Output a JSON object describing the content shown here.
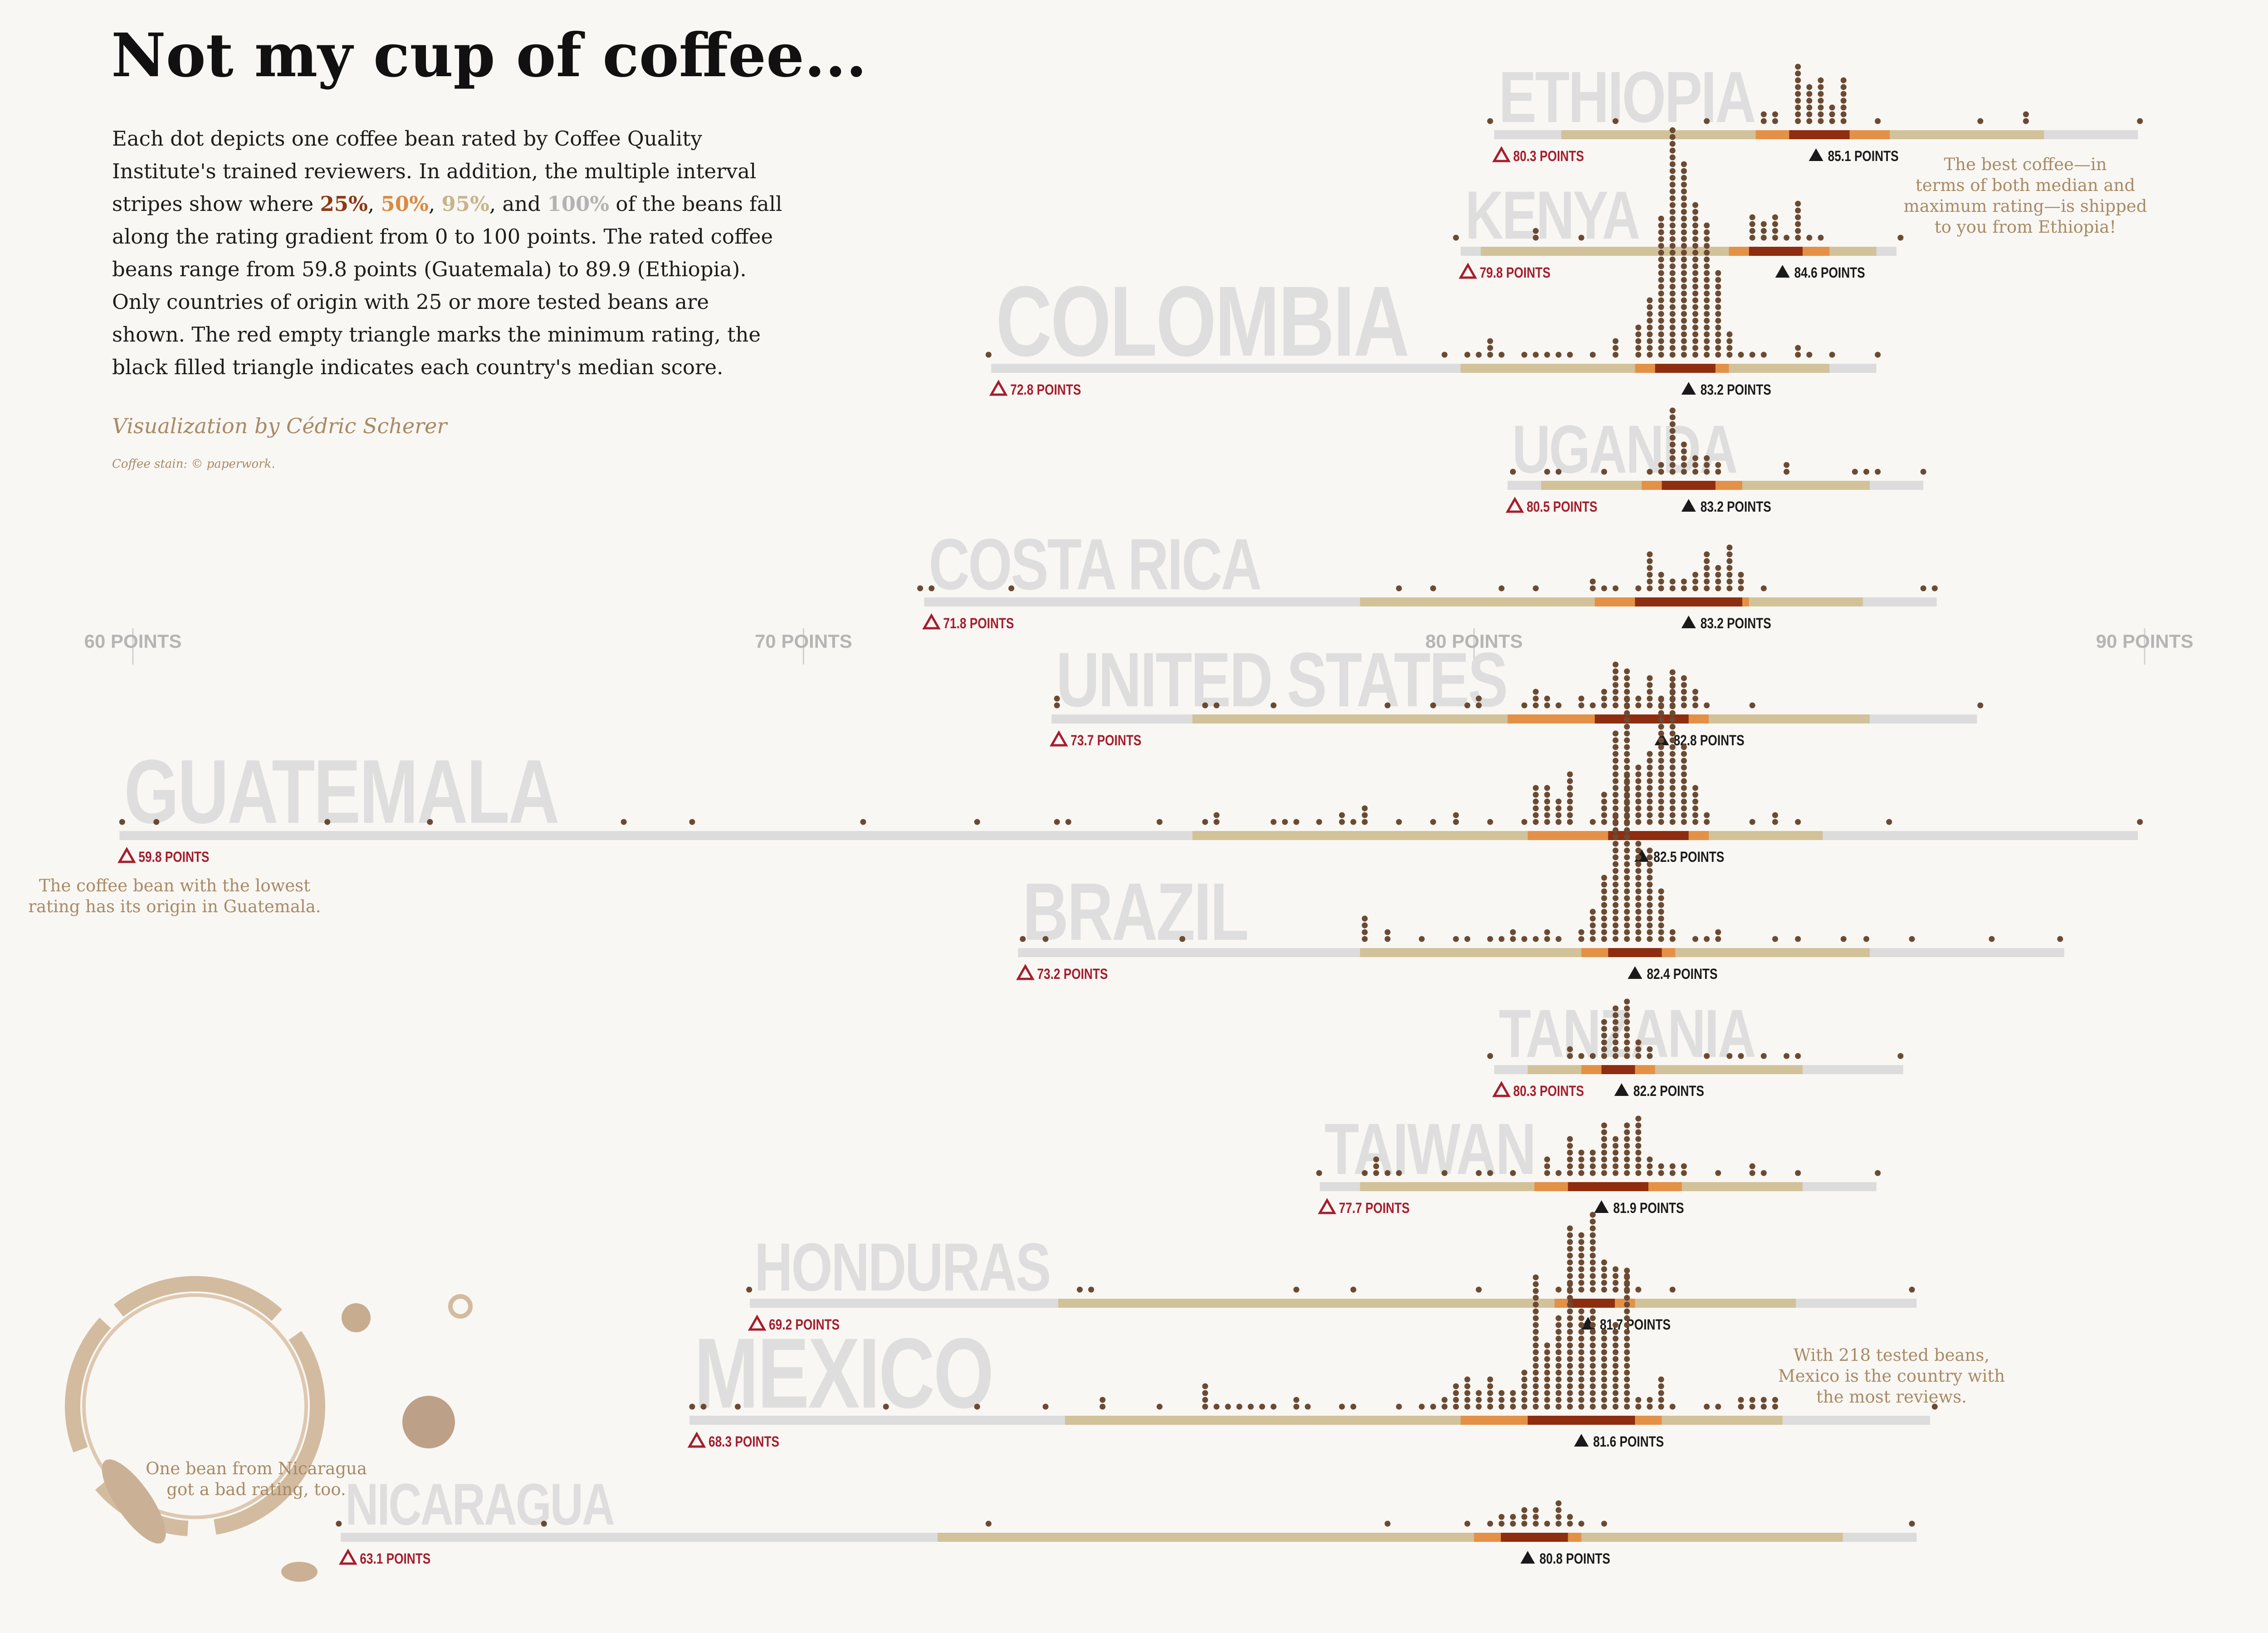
{
  "title": "Not my cup of coffee...",
  "intro": {
    "part1": "Each dot depicts one coffee bean rated by Coffee Quality Institute's trained reviewers. In addition, the multiple interval stripes show where ",
    "p25": "25%",
    "sep1": ", ",
    "p50": "50%",
    "sep2": ",  ",
    "p95": "95%",
    "sep3": ", and ",
    "p100": "100%",
    "part2": " of the beans fall along the rating gradient from 0 to 100 points. The rated coffee beans range from 59.8 points (Guatemala) to 89.9 (Ethiopia). Only countries of origin with 25 or more tested beans are shown. The red empty triangle marks the minimum rating, the black filled triangle indicates each country's median score."
  },
  "credit": "Visualization by Cédric Scherer",
  "stain_credit": "Coffee stain: © paperwork.",
  "colors": {
    "background": "#f9f7f3",
    "dot": "#6b4a33",
    "interval_100": "#dcdcdc",
    "interval_95": "#d2c29a",
    "interval_50": "#e49148",
    "interval_25": "#8f2d10",
    "min_marker": "#a51d2d",
    "median_marker": "#1a1a1a",
    "annotation": "#a88a66",
    "country_label": "#dedede"
  },
  "chart_data": {
    "type": "dot-interval",
    "x_axis": {
      "ylim_note": "rating",
      "xlim": [
        60,
        90
      ],
      "ticks": [
        60,
        70,
        80,
        90
      ],
      "tick_labels": [
        "60 POINTS",
        "70 POINTS",
        "80 POINTS",
        "90 POINTS"
      ]
    },
    "series": [
      {
        "country": "ETHIOPIA",
        "min": 80.3,
        "max": 89.9,
        "median": 85.1,
        "min_label": "80.3 POINTS",
        "median_label": "85.1 POINTS",
        "q25": [
          84.7,
          85.6
        ],
        "q50": [
          84.2,
          86.2
        ],
        "q95": [
          81.3,
          88.5
        ],
        "n": 44
      },
      {
        "country": "KENYA",
        "min": 79.8,
        "max": 86.3,
        "median": 84.6,
        "min_label": "79.8 POINTS",
        "median_label": "84.6 POINTS",
        "q25": [
          84.1,
          84.9
        ],
        "q50": [
          83.8,
          85.3
        ],
        "q95": [
          80.1,
          86.0
        ],
        "n": 25
      },
      {
        "country": "COLOMBIA",
        "min": 72.8,
        "max": 86.0,
        "median": 83.2,
        "min_label": "72.8 POINTS",
        "median_label": "83.2 POINTS",
        "q25": [
          82.7,
          83.6
        ],
        "q50": [
          82.4,
          83.8
        ],
        "q95": [
          79.8,
          85.3
        ],
        "n": 183
      },
      {
        "country": "UGANDA",
        "min": 80.5,
        "max": 86.7,
        "median": 83.2,
        "min_label": "80.5 POINTS",
        "median_label": "83.2 POINTS",
        "q25": [
          82.8,
          83.6
        ],
        "q50": [
          82.5,
          84.0
        ],
        "q95": [
          81.0,
          85.9
        ],
        "n": 36
      },
      {
        "country": "COSTA RICA",
        "min": 71.8,
        "max": 86.9,
        "median": 83.2,
        "min_label": "71.8 POINTS",
        "median_label": "83.2 POINTS",
        "q25": [
          82.4,
          84.0
        ],
        "q50": [
          81.8,
          84.1
        ],
        "q95": [
          78.3,
          85.8
        ],
        "n": 51
      },
      {
        "country": "UNITED STATES",
        "min": 73.7,
        "max": 87.5,
        "median": 82.8,
        "min_label": "73.7 POINTS",
        "median_label": "82.8 POINTS",
        "q25": [
          81.8,
          83.2
        ],
        "q50": [
          80.5,
          83.5
        ],
        "q95": [
          75.8,
          85.9
        ],
        "n": 60
      },
      {
        "country": "GUATEMALA",
        "min": 59.8,
        "max": 89.9,
        "median": 82.5,
        "min_label": "59.8 POINTS",
        "median_label": "82.5 POINTS",
        "q25": [
          82.0,
          83.2
        ],
        "q50": [
          80.8,
          83.5
        ],
        "q95": [
          75.8,
          85.2
        ],
        "n": 181
      },
      {
        "country": "BRAZIL",
        "min": 73.2,
        "max": 88.8,
        "median": 82.4,
        "min_label": "73.2 POINTS",
        "median_label": "82.4 POINTS",
        "q25": [
          82.0,
          82.8
        ],
        "q50": [
          81.6,
          83.0
        ],
        "q95": [
          78.3,
          85.9
        ],
        "n": 132
      },
      {
        "country": "TANZANIA",
        "min": 80.3,
        "max": 86.4,
        "median": 82.2,
        "min_label": "80.3 POINTS",
        "median_label": "82.2 POINTS",
        "q25": [
          81.9,
          82.4
        ],
        "q50": [
          81.6,
          82.7
        ],
        "q95": [
          80.8,
          84.9
        ],
        "n": 40
      },
      {
        "country": "TAIWAN",
        "min": 77.7,
        "max": 86.0,
        "median": 81.9,
        "min_label": "77.7 POINTS",
        "median_label": "81.9 POINTS",
        "q25": [
          81.4,
          82.6
        ],
        "q50": [
          80.9,
          83.1
        ],
        "q95": [
          78.3,
          84.9
        ],
        "n": 75
      },
      {
        "country": "HONDURAS",
        "min": 69.2,
        "max": 86.6,
        "median": 81.7,
        "min_label": "69.2 POINTS",
        "median_label": "81.7 POINTS",
        "q25": [
          81.4,
          82.1
        ],
        "q50": [
          81.2,
          82.4
        ],
        "q95": [
          73.8,
          84.8
        ],
        "n": 53
      },
      {
        "country": "MEXICO",
        "min": 68.3,
        "max": 86.8,
        "median": 81.6,
        "min_label": "68.3 POINTS",
        "median_label": "81.6 POINTS",
        "q25": [
          80.8,
          82.4
        ],
        "q50": [
          79.8,
          82.8
        ],
        "q95": [
          73.9,
          84.6
        ],
        "n": 218
      },
      {
        "country": "NICARAGUA",
        "min": 63.1,
        "max": 86.6,
        "median": 80.8,
        "min_label": "63.1 POINTS",
        "median_label": "80.8 POINTS",
        "q25": [
          80.4,
          81.4
        ],
        "q50": [
          80.0,
          81.6
        ],
        "q95": [
          72.0,
          85.5
        ],
        "n": 26
      }
    ],
    "annotations": [
      {
        "target": "ETHIOPIA",
        "lines": [
          "The best coffee—in",
          "terms of both median and",
          "maximum rating—is shipped",
          "to you from Ethiopia!"
        ]
      },
      {
        "target": "GUATEMALA",
        "lines": [
          "The coffee bean with the lowest",
          "rating has its origin in Guatemala."
        ]
      },
      {
        "target": "MEXICO",
        "lines": [
          "With 218 tested beans,",
          "Mexico is the country with",
          "the most reviews."
        ]
      },
      {
        "target": "NICARAGUA",
        "lines": [
          "One bean from Nicaragua",
          "got a bad rating, too."
        ]
      }
    ]
  }
}
